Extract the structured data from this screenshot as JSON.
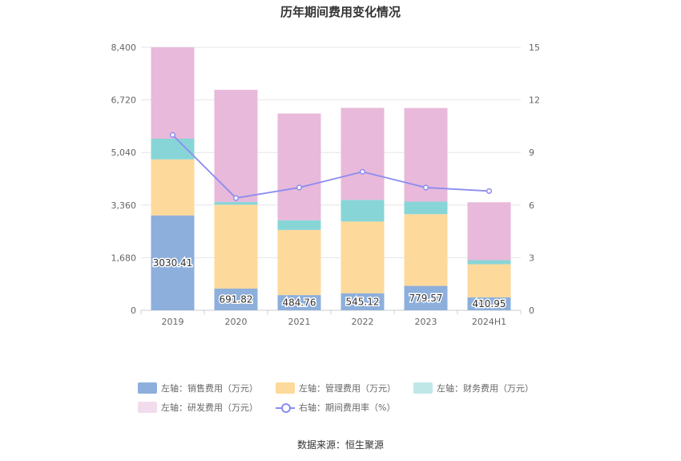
{
  "title": "历年期间费用变化情况",
  "source": "数据来源：恒生聚源",
  "chart_data": {
    "type": "bar",
    "stacked": true,
    "categories": [
      "2019",
      "2020",
      "2021",
      "2022",
      "2023",
      "2024H1"
    ],
    "y_left": {
      "ticks": [
        "0",
        "1,680",
        "3,360",
        "5,040",
        "6,720",
        "8,400"
      ],
      "ylim": [
        0,
        8400
      ]
    },
    "y_right": {
      "ticks": [
        "0",
        "3",
        "6",
        "9",
        "12",
        "15"
      ],
      "ylim": [
        0,
        15
      ]
    },
    "series": [
      {
        "name": "左轴：销售费用（万元）",
        "axis": "left",
        "color": "#8dafdc",
        "values": [
          3030.41,
          691.82,
          484.76,
          545.12,
          779.57,
          410.95
        ],
        "labels": [
          "3030.41",
          "691.82",
          "484.76",
          "545.12",
          "779.57",
          "410.95"
        ]
      },
      {
        "name": "左轴：管理费用（万元）",
        "axis": "left",
        "color": "#fdd99b",
        "values": [
          1790,
          2680,
          2080,
          2290,
          2290,
          1060
        ]
      },
      {
        "name": "左轴：财务费用（万元）",
        "axis": "left",
        "color": "#88d5d7",
        "values": [
          660,
          90,
          310,
          690,
          400,
          130
        ]
      },
      {
        "name": "左轴：研发费用（万元）",
        "axis": "left",
        "color": "#e8b9da",
        "values": [
          2920,
          3580,
          3410,
          2940,
          2990,
          1850
        ]
      },
      {
        "name": "右轴：期间费用率（%）",
        "axis": "right",
        "type": "line",
        "color": "#8c8cf0",
        "values": [
          10.0,
          6.4,
          7.0,
          7.9,
          7.0,
          6.8
        ]
      }
    ],
    "legend_position": "bottom",
    "grid": true
  },
  "legend_colors": {
    "sales": "#8dafdc",
    "mgmt": "#fdd99b",
    "fin": "#88d5d7",
    "rd": "#e8b9da"
  }
}
